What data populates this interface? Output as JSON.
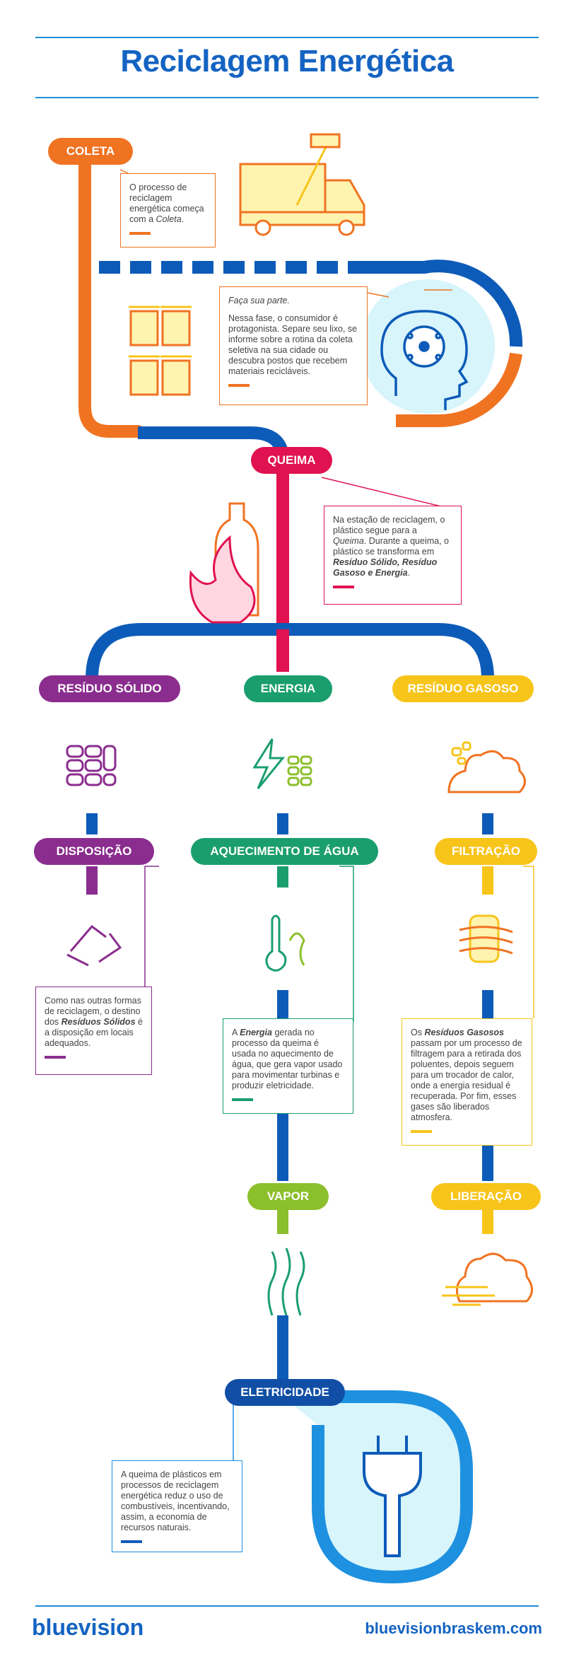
{
  "title": {
    "part1": "Reciclagem",
    "part2": "Energética"
  },
  "colors": {
    "orange": "#f07322",
    "blue": "#0d5bb8",
    "lightblue": "#1e90e0",
    "crimson": "#e0124f",
    "purple": "#8a2d8e",
    "green": "#1a9e6e",
    "yellow": "#f7c41a",
    "lime": "#8cbf2c",
    "darkblue": "#114fa6"
  },
  "steps": {
    "coleta": "COLETA",
    "queima": "QUEIMA",
    "residuo_solido": "RESÍDUO SÓLIDO",
    "energia": "ENERGIA",
    "residuo_gasoso": "RESÍDUO GASOSO",
    "disposicao": "DISPOSIÇÃO",
    "aquecimento": "AQUECIMENTO DE ÁGUA",
    "filtracao": "FILTRAÇÃO",
    "vapor": "VAPOR",
    "liberacao": "LIBERAÇÃO",
    "eletricidade": "ELETRICIDADE"
  },
  "texts": {
    "coleta_a": "O processo de reciclagem energética começa com a ",
    "coleta_b": "Coleta",
    "coleta_c": ".",
    "faca_title": "Faça sua parte.",
    "faca_body": "Nessa fase, o consumidor é protagonista. Separe seu lixo, se informe sobre a rotina da coleta seletiva na sua cidade ou descubra postos que recebem materiais recicláveis.",
    "queima_a": "Na estação de reciclagem, o plástico segue para a ",
    "queima_b": "Queima",
    "queima_c": ". Durante a queima, o plástico se transforma em ",
    "queima_d": "Resíduo Sólido, Resíduo Gasoso e Energia",
    "queima_e": ".",
    "disp_a": "Como nas outras formas de reciclagem, o destino dos ",
    "disp_b": "Resíduos Sólidos",
    "disp_c": " é a disposição em locais adequados.",
    "aquec_a": "A ",
    "aquec_b": "Energia",
    "aquec_c": " gerada no processo da queima é usada no aquecimento de água, que gera vapor usado para movimentar turbinas e produzir eletricidade.",
    "filt_a": "Os ",
    "filt_b": "Resíduos Gasosos",
    "filt_c": " passam por um processo de filtragem para a retirada dos poluentes, depois seguem para um trocador de calor, onde a energia residual é recuperada. Por fim, esses gases são liberados atmosfera.",
    "elet": "A queima de plásticos em processos de reciclagem energética reduz o uso de combustíveis, incentivando, assim, a economia de recursos naturais."
  },
  "footer": {
    "brand": "bluevision",
    "url": "bluevisionbraskem.com"
  }
}
